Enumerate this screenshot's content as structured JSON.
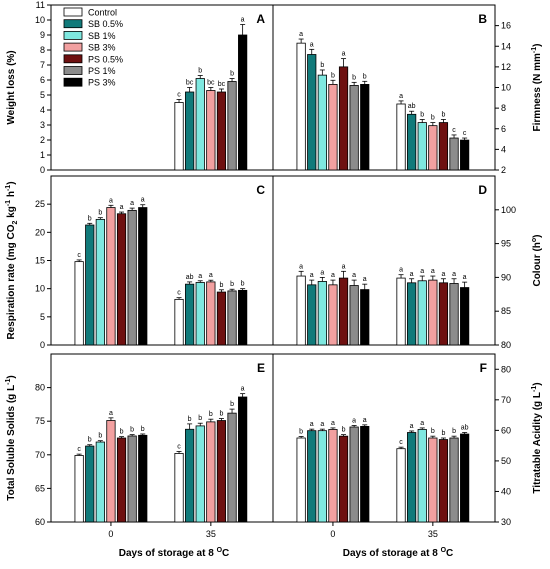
{
  "colors": {
    "Control": "#ffffff",
    "SB 0.5%": "#117a7a",
    "SB 1%": "#7fe8e0",
    "SB 3%": "#f2a0a0",
    "PS 0.5%": "#6e1010",
    "PS 1%": "#8c8c8c",
    "PS 3%": "#000000"
  },
  "legend": [
    "Control",
    "SB 0.5%",
    "SB 1%",
    "SB 3%",
    "PS 0.5%",
    "PS 1%",
    "PS 3%"
  ],
  "x_axis_label_prefix": "Days of storage at 8 ",
  "x_axis_label_sup": "O",
  "x_axis_label_suffix": "C",
  "chart_data": [
    {
      "type": "bar",
      "panel": "A",
      "ylabel": "Weight loss (%)",
      "categories": [
        "0",
        "35"
      ],
      "ylim": [
        0,
        11
      ],
      "yticks": [
        0,
        1,
        2,
        3,
        4,
        5,
        6,
        7,
        8,
        9,
        10,
        11
      ],
      "series": [
        {
          "name": "Control",
          "values": [
            null,
            4.5
          ],
          "err": [
            null,
            0.2
          ],
          "letters": [
            null,
            "c"
          ]
        },
        {
          "name": "SB 0.5%",
          "values": [
            null,
            5.2
          ],
          "err": [
            null,
            0.3
          ],
          "letters": [
            null,
            "bc"
          ]
        },
        {
          "name": "SB 1%",
          "values": [
            null,
            6.1
          ],
          "err": [
            null,
            0.2
          ],
          "letters": [
            null,
            "b"
          ]
        },
        {
          "name": "SB 3%",
          "values": [
            null,
            5.3
          ],
          "err": [
            null,
            0.2
          ],
          "letters": [
            null,
            "bc"
          ]
        },
        {
          "name": "PS 0.5%",
          "values": [
            null,
            5.2
          ],
          "err": [
            null,
            0.2
          ],
          "letters": [
            null,
            "bc"
          ]
        },
        {
          "name": "PS 1%",
          "values": [
            null,
            5.9
          ],
          "err": [
            null,
            0.2
          ],
          "letters": [
            null,
            "b"
          ]
        },
        {
          "name": "PS 3%",
          "values": [
            null,
            9.0
          ],
          "err": [
            null,
            0.7
          ],
          "letters": [
            null,
            "a"
          ]
        }
      ]
    },
    {
      "type": "bar",
      "panel": "B",
      "ylabel": "Firmness (N mm",
      "ylabel_sup": "-1",
      "ylabel_suffix": ")",
      "categories": [
        "0",
        "35"
      ],
      "ylim": [
        2,
        18
      ],
      "yticks": [
        2,
        4,
        6,
        8,
        10,
        12,
        14,
        16
      ],
      "series": [
        {
          "name": "Control",
          "values": [
            14.3,
            8.4
          ],
          "err": [
            0.4,
            0.3
          ],
          "letters": [
            "a",
            "a"
          ]
        },
        {
          "name": "SB 0.5%",
          "values": [
            13.2,
            7.4
          ],
          "err": [
            0.5,
            0.3
          ],
          "letters": [
            "a",
            "ab"
          ]
        },
        {
          "name": "SB 1%",
          "values": [
            11.2,
            6.6
          ],
          "err": [
            0.5,
            0.3
          ],
          "letters": [
            "b",
            "b"
          ]
        },
        {
          "name": "SB 3%",
          "values": [
            10.3,
            6.3
          ],
          "err": [
            0.4,
            0.3
          ],
          "letters": [
            "b",
            "b"
          ]
        },
        {
          "name": "PS 0.5%",
          "values": [
            12.0,
            6.6
          ],
          "err": [
            0.8,
            0.3
          ],
          "letters": [
            "a",
            "b"
          ]
        },
        {
          "name": "PS 1%",
          "values": [
            10.2,
            5.1
          ],
          "err": [
            0.3,
            0.3
          ],
          "letters": [
            "b",
            "c"
          ]
        },
        {
          "name": "PS 3%",
          "values": [
            10.3,
            4.9
          ],
          "err": [
            0.3,
            0.2
          ],
          "letters": [
            "b",
            "c"
          ]
        }
      ]
    },
    {
      "type": "bar",
      "panel": "C",
      "ylabel": "Respiration rate (mg CO",
      "ylabel_sub": "2",
      "ylabel_mid": " kg",
      "ylabel_sup1": "-1",
      "ylabel_mid2": " h",
      "ylabel_sup2": "-1",
      "ylabel_suffix": ")",
      "categories": [
        "0",
        "35"
      ],
      "ylim": [
        0,
        30
      ],
      "yticks": [
        0,
        5,
        10,
        15,
        20,
        25
      ],
      "series": [
        {
          "name": "Control",
          "values": [
            14.8,
            8.1
          ],
          "err": [
            0.3,
            0.3
          ],
          "letters": [
            "c",
            "c"
          ]
        },
        {
          "name": "SB 0.5%",
          "values": [
            21.3,
            10.8
          ],
          "err": [
            0.3,
            0.4
          ],
          "letters": [
            "b",
            "ab"
          ]
        },
        {
          "name": "SB 1%",
          "values": [
            22.3,
            11.1
          ],
          "err": [
            0.3,
            0.3
          ],
          "letters": [
            "b",
            "a"
          ]
        },
        {
          "name": "SB 3%",
          "values": [
            24.4,
            11.2
          ],
          "err": [
            0.4,
            0.3
          ],
          "letters": [
            "a",
            "a"
          ]
        },
        {
          "name": "PS 0.5%",
          "values": [
            23.3,
            9.4
          ],
          "err": [
            0.3,
            0.4
          ],
          "letters": [
            "a",
            "b"
          ]
        },
        {
          "name": "PS 1%",
          "values": [
            23.9,
            9.6
          ],
          "err": [
            0.4,
            0.3
          ],
          "letters": [
            "a",
            "b"
          ]
        },
        {
          "name": "PS 3%",
          "values": [
            24.4,
            9.7
          ],
          "err": [
            0.5,
            0.3
          ],
          "letters": [
            "a",
            "b"
          ]
        }
      ]
    },
    {
      "type": "bar",
      "panel": "D",
      "ylabel": "Colour (h",
      "ylabel_sup": "o",
      "ylabel_suffix": ")",
      "categories": [
        "0",
        "35"
      ],
      "ylim": [
        80,
        105
      ],
      "yticks": [
        80,
        85,
        90,
        95,
        100
      ],
      "series": [
        {
          "name": "Control",
          "values": [
            90.2,
            89.9
          ],
          "err": [
            0.7,
            0.5
          ],
          "letters": [
            "a",
            "a"
          ]
        },
        {
          "name": "SB 0.5%",
          "values": [
            88.9,
            89.2
          ],
          "err": [
            0.7,
            0.6
          ],
          "letters": [
            "a",
            "a"
          ]
        },
        {
          "name": "SB 1%",
          "values": [
            89.4,
            89.5
          ],
          "err": [
            0.6,
            0.7
          ],
          "letters": [
            "a",
            "a"
          ]
        },
        {
          "name": "SB 3%",
          "values": [
            88.9,
            89.6
          ],
          "err": [
            0.7,
            0.6
          ],
          "letters": [
            "a",
            "a"
          ]
        },
        {
          "name": "PS 0.5%",
          "values": [
            89.9,
            89.2
          ],
          "err": [
            1.0,
            0.6
          ],
          "letters": [
            "a",
            "a"
          ]
        },
        {
          "name": "PS 1%",
          "values": [
            88.8,
            89.1
          ],
          "err": [
            0.8,
            0.7
          ],
          "letters": [
            "a",
            "a"
          ]
        },
        {
          "name": "PS 3%",
          "values": [
            88.2,
            88.5
          ],
          "err": [
            0.8,
            0.8
          ],
          "letters": [
            "a",
            "a"
          ]
        }
      ]
    },
    {
      "type": "bar",
      "panel": "E",
      "ylabel": "Total Soluble Solids (g L",
      "ylabel_sup": "-1",
      "ylabel_suffix": ")",
      "categories": [
        "0",
        "35"
      ],
      "ylim": [
        60,
        85
      ],
      "yticks": [
        60,
        65,
        70,
        75,
        80
      ],
      "series": [
        {
          "name": "Control",
          "values": [
            69.9,
            70.2
          ],
          "err": [
            0.2,
            0.3
          ],
          "letters": [
            "c",
            "c"
          ]
        },
        {
          "name": "SB 0.5%",
          "values": [
            71.3,
            73.8
          ],
          "err": [
            0.2,
            0.8
          ],
          "letters": [
            "b",
            "b"
          ]
        },
        {
          "name": "SB 1%",
          "values": [
            71.9,
            74.3
          ],
          "err": [
            0.2,
            0.4
          ],
          "letters": [
            "b",
            "b"
          ]
        },
        {
          "name": "SB 3%",
          "values": [
            75.1,
            74.9
          ],
          "err": [
            0.4,
            0.4
          ],
          "letters": [
            "a",
            "b"
          ]
        },
        {
          "name": "PS 0.5%",
          "values": [
            72.5,
            75.1
          ],
          "err": [
            0.2,
            0.3
          ],
          "letters": [
            "b",
            "b"
          ]
        },
        {
          "name": "PS 1%",
          "values": [
            72.8,
            76.2
          ],
          "err": [
            0.2,
            0.6
          ],
          "letters": [
            "b",
            "b"
          ]
        },
        {
          "name": "PS 3%",
          "values": [
            72.9,
            78.6
          ],
          "err": [
            0.2,
            0.5
          ],
          "letters": [
            "b",
            "a"
          ]
        }
      ]
    },
    {
      "type": "bar",
      "panel": "F",
      "ylabel": "Titratable Acidity (g L",
      "ylabel_sup": "-1",
      "ylabel_suffix": ")",
      "categories": [
        "0",
        "35"
      ],
      "ylim": [
        30,
        85
      ],
      "yticks": [
        30,
        40,
        50,
        60,
        70,
        80
      ],
      "series": [
        {
          "name": "Control",
          "values": [
            57.5,
            54.0
          ],
          "err": [
            0.5,
            0.5
          ],
          "letters": [
            "b",
            "c"
          ]
        },
        {
          "name": "SB 0.5%",
          "values": [
            59.9,
            59.3
          ],
          "err": [
            0.5,
            0.5
          ],
          "letters": [
            "a",
            "a"
          ]
        },
        {
          "name": "SB 1%",
          "values": [
            59.9,
            60.3
          ],
          "err": [
            0.5,
            0.5
          ],
          "letters": [
            "a",
            "a"
          ]
        },
        {
          "name": "SB 3%",
          "values": [
            60.3,
            57.5
          ],
          "err": [
            0.5,
            0.6
          ],
          "letters": [
            "a",
            "b"
          ]
        },
        {
          "name": "PS 0.5%",
          "values": [
            58.1,
            57.0
          ],
          "err": [
            0.5,
            0.5
          ],
          "letters": [
            "b",
            "b"
          ]
        },
        {
          "name": "PS 1%",
          "values": [
            61.1,
            57.5
          ],
          "err": [
            0.5,
            0.6
          ],
          "letters": [
            "a",
            "b"
          ]
        },
        {
          "name": "PS 3%",
          "values": [
            61.3,
            58.8
          ],
          "err": [
            0.5,
            0.5
          ],
          "letters": [
            "a",
            "ab"
          ]
        }
      ]
    }
  ]
}
